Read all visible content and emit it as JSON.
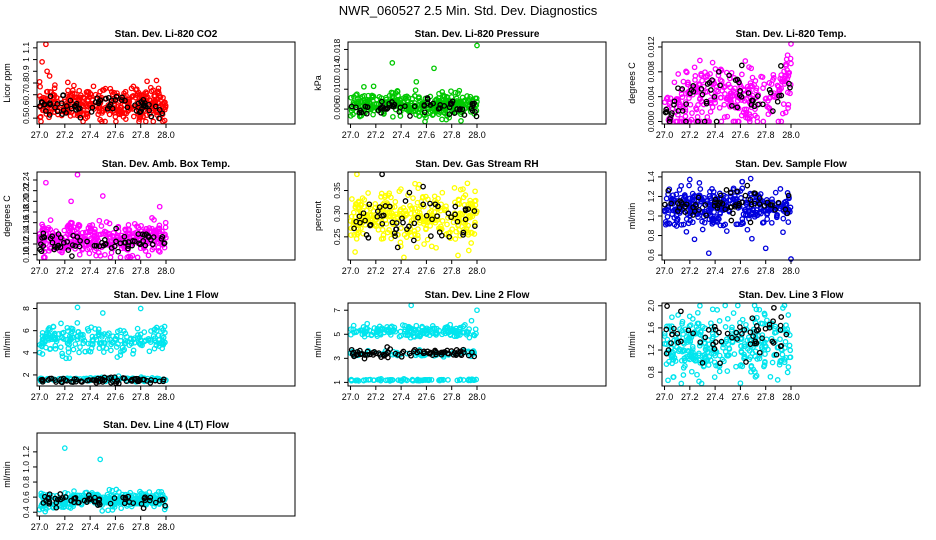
{
  "page": {
    "title": "NWR_060527  2.5 Min. Std. Dev. Diagnostics"
  },
  "chart_data": [
    {
      "type": "scatter",
      "title": "Stan. Dev. Li-820 CO2",
      "xlabel": "",
      "ylabel": "Licor ppm",
      "xlim": [
        26.98,
        29.02
      ],
      "ylim": [
        0.45,
        1.15
      ],
      "xticks": [
        27.0,
        27.2,
        27.4,
        27.6,
        27.8,
        28.0
      ],
      "xtick_labels": [
        "27.0",
        "27.2",
        "27.4",
        "27.6",
        "27.8",
        "28.0"
      ],
      "yticks": [
        0.5,
        0.6,
        0.7,
        0.8,
        0.9,
        1.0,
        1.1
      ],
      "ytick_labels": [
        "0.5",
        "0.6",
        "0.7",
        "0.8",
        "0.9",
        "1",
        "1.1"
      ],
      "series": [
        {
          "name": "color",
          "color": "#ff0000",
          "base": 0.62,
          "spread": 0.07,
          "n": 360,
          "outliers": [
            [
              27.05,
              1.13
            ],
            [
              27.02,
              0.98
            ],
            [
              27.06,
              0.9
            ],
            [
              27.08,
              0.86
            ],
            [
              27.5,
              0.74
            ],
            [
              27.88,
              0.76
            ],
            [
              27.99,
              0.48
            ]
          ]
        },
        {
          "name": "black",
          "color": "#000000",
          "base": 0.6,
          "spread": 0.04,
          "n": 70,
          "outliers": []
        }
      ]
    },
    {
      "type": "scatter",
      "title": "Stan. Dev. Li-820 Pressure",
      "xlabel": "",
      "ylabel": "kPa",
      "xlim": [
        26.98,
        29.02
      ],
      "ylim": [
        0.003,
        0.0195
      ],
      "xticks": [
        27.0,
        27.2,
        27.4,
        27.6,
        27.8,
        28.0
      ],
      "xtick_labels": [
        "27.0",
        "27.2",
        "27.4",
        "27.6",
        "27.8",
        "28.0"
      ],
      "yticks": [
        0.006,
        0.01,
        0.014,
        0.018
      ],
      "ytick_labels": [
        "0.006",
        "0.010",
        "0.014",
        "0.018"
      ],
      "series": [
        {
          "name": "color",
          "color": "#00c800",
          "base": 0.0068,
          "spread": 0.0012,
          "n": 340,
          "outliers": [
            [
              27.33,
              0.0153
            ],
            [
              27.52,
              0.0115
            ],
            [
              27.66,
              0.0142
            ],
            [
              28.0,
              0.0188
            ],
            [
              27.05,
              0.009
            ],
            [
              27.85,
              0.0092
            ]
          ]
        },
        {
          "name": "black",
          "color": "#000000",
          "base": 0.0062,
          "spread": 0.0008,
          "n": 60,
          "outliers": []
        }
      ]
    },
    {
      "type": "scatter",
      "title": "Stan. Dev. Li-820 Temp.",
      "xlabel": "",
      "ylabel": "degrees C",
      "xlim": [
        26.98,
        29.02
      ],
      "ylim": [
        -0.0004,
        0.0128
      ],
      "xticks": [
        27.0,
        27.2,
        27.4,
        27.6,
        27.8,
        28.0
      ],
      "xtick_labels": [
        "27.0",
        "27.2",
        "27.4",
        "27.6",
        "27.8",
        "28.0"
      ],
      "yticks": [
        0.0,
        0.004,
        0.008,
        0.012
      ],
      "ytick_labels": [
        "0.000",
        "0.004",
        "0.008",
        "0.012"
      ],
      "series": [
        {
          "name": "color",
          "color": "#ff00ff",
          "base": 0.005,
          "spread": 0.0022,
          "n": 300,
          "trend": "temp",
          "outliers": [
            [
              27.1,
              0.0
            ],
            [
              27.15,
              0.0
            ],
            [
              27.2,
              0.0
            ],
            [
              27.25,
              0.0
            ],
            [
              27.35,
              0.0
            ],
            [
              27.45,
              0.0
            ],
            [
              27.9,
              0.0
            ],
            [
              28.0,
              0.0125
            ]
          ]
        },
        {
          "name": "black",
          "color": "#000000",
          "base": 0.005,
          "spread": 0.0015,
          "n": 60,
          "trend": "temp",
          "outliers": []
        }
      ]
    },
    {
      "type": "scatter",
      "title": "Stan. Dev. Amb. Box Temp.",
      "xlabel": "",
      "ylabel": "degrees C",
      "xlim": [
        26.98,
        29.02
      ],
      "ylim": [
        0.09,
        0.255
      ],
      "xticks": [
        27.0,
        27.2,
        27.4,
        27.6,
        27.8,
        28.0
      ],
      "xtick_labels": [
        "27.0",
        "27.2",
        "27.4",
        "27.6",
        "27.8",
        "28.0"
      ],
      "yticks": [
        0.1,
        0.12,
        0.14,
        0.16,
        0.18,
        0.2,
        0.22,
        0.24
      ],
      "ytick_labels": [
        "0.10",
        "0.12",
        "0.14",
        "0.16",
        "0.18",
        "0.20",
        "0.22",
        "0.24"
      ],
      "series": [
        {
          "name": "color",
          "color": "#ff00ff",
          "base": 0.13,
          "spread": 0.015,
          "n": 340,
          "outliers": [
            [
              27.05,
              0.235
            ],
            [
              27.3,
              0.25
            ],
            [
              27.5,
              0.21
            ],
            [
              27.25,
              0.2
            ],
            [
              27.95,
              0.19
            ]
          ]
        },
        {
          "name": "black",
          "color": "#000000",
          "base": 0.122,
          "spread": 0.01,
          "n": 70,
          "outliers": []
        }
      ]
    },
    {
      "type": "scatter",
      "title": "Stan. Dev. Gas Stream RH",
      "xlabel": "",
      "ylabel": "percent",
      "xlim": [
        26.98,
        29.02
      ],
      "ylim": [
        0.2,
        0.39
      ],
      "xticks": [
        27.0,
        27.2,
        27.4,
        27.6,
        27.8,
        28.0
      ],
      "xtick_labels": [
        "27.0",
        "27.2",
        "27.4",
        "27.6",
        "27.8",
        "28.0"
      ],
      "yticks": [
        0.25,
        0.3,
        0.35
      ],
      "ytick_labels": [
        "0.25",
        "0.30",
        "0.35"
      ],
      "series": [
        {
          "name": "color",
          "color": "#ffff00",
          "base": 0.29,
          "spread": 0.03,
          "n": 340,
          "outliers": [
            [
              27.05,
              0.385
            ],
            [
              27.85,
              0.21
            ]
          ]
        },
        {
          "name": "black",
          "color": "#000000",
          "base": 0.28,
          "spread": 0.025,
          "n": 60,
          "outliers": [
            [
              27.25,
              0.385
            ]
          ]
        }
      ]
    },
    {
      "type": "scatter",
      "title": "Stan. Dev. Sample Flow",
      "xlabel": "",
      "ylabel": "ml/min",
      "xlim": [
        26.98,
        29.02
      ],
      "ylim": [
        0.55,
        1.45
      ],
      "xticks": [
        27.0,
        27.2,
        27.4,
        27.6,
        27.8,
        28.0
      ],
      "xtick_labels": [
        "27.0",
        "27.2",
        "27.4",
        "27.6",
        "27.8",
        "28.0"
      ],
      "yticks": [
        0.6,
        0.8,
        1.0,
        1.2,
        1.4
      ],
      "ytick_labels": [
        "0.6",
        "0.8",
        "1.0",
        "1.2",
        "1.4"
      ],
      "series": [
        {
          "name": "color",
          "color": "#0000dd",
          "base": 1.1,
          "spread": 0.1,
          "n": 360,
          "outliers": [
            [
              27.35,
              0.62
            ],
            [
              27.8,
              0.67
            ],
            [
              28.0,
              0.56
            ]
          ]
        },
        {
          "name": "black",
          "color": "#000000",
          "base": 1.12,
          "spread": 0.08,
          "n": 60,
          "outliers": []
        }
      ]
    },
    {
      "type": "scatter",
      "title": "Stan. Dev. Line 1 Flow",
      "xlabel": "",
      "ylabel": "ml/min",
      "xlim": [
        26.98,
        29.02
      ],
      "ylim": [
        1.0,
        8.5
      ],
      "xticks": [
        27.0,
        27.2,
        27.4,
        27.6,
        27.8,
        28.0
      ],
      "xtick_labels": [
        "27.0",
        "27.2",
        "27.4",
        "27.6",
        "27.8",
        "28.0"
      ],
      "yticks": [
        2,
        4,
        6,
        8
      ],
      "ytick_labels": [
        "2",
        "4",
        "6",
        "8"
      ],
      "series": [
        {
          "name": "color",
          "color": "#00e5ee",
          "base": 5.2,
          "spread": 0.6,
          "n": 320,
          "band2": 1.6,
          "outliers": [
            [
              27.3,
              8.1
            ],
            [
              27.8,
              8.0
            ],
            [
              27.5,
              7.6
            ]
          ]
        },
        {
          "name": "black",
          "color": "#000000",
          "base": 1.5,
          "spread": 0.12,
          "n": 70,
          "outliers": []
        }
      ]
    },
    {
      "type": "scatter",
      "title": "Stan. Dev. Line 2 Flow",
      "xlabel": "",
      "ylabel": "ml/min",
      "xlim": [
        26.98,
        29.02
      ],
      "ylim": [
        0.7,
        7.6
      ],
      "xticks": [
        27.0,
        27.2,
        27.4,
        27.6,
        27.8,
        28.0
      ],
      "xtick_labels": [
        "27.0",
        "27.2",
        "27.4",
        "27.6",
        "27.8",
        "28.0"
      ],
      "yticks": [
        1,
        3,
        5,
        7
      ],
      "ytick_labels": [
        "1",
        "3",
        "5",
        "7"
      ],
      "series": [
        {
          "name": "color",
          "color": "#00e5ee",
          "base": 5.3,
          "spread": 0.25,
          "n": 320,
          "band2": 1.2,
          "band3": 3.4,
          "outliers": [
            [
              27.48,
              7.4
            ],
            [
              28.0,
              7.0
            ]
          ]
        },
        {
          "name": "black",
          "color": "#000000",
          "base": 3.4,
          "spread": 0.2,
          "n": 80,
          "outliers": []
        }
      ]
    },
    {
      "type": "scatter",
      "title": "Stan. Dev. Line 3 Flow",
      "xlabel": "",
      "ylabel": "ml/min",
      "xlim": [
        26.98,
        29.02
      ],
      "ylim": [
        0.55,
        2.05
      ],
      "xticks": [
        27.0,
        27.2,
        27.4,
        27.6,
        27.8,
        28.0
      ],
      "xtick_labels": [
        "27.0",
        "27.2",
        "27.4",
        "27.6",
        "27.8",
        "28.0"
      ],
      "yticks": [
        0.8,
        1.2,
        1.6,
        2.0
      ],
      "ytick_labels": [
        "0.8",
        "1.2",
        "1.6",
        "2.0"
      ],
      "series": [
        {
          "name": "color",
          "color": "#00e5ee",
          "base": 1.3,
          "spread": 0.28,
          "n": 340,
          "outliers": [
            [
              27.28,
              2.0
            ],
            [
              27.6,
              0.6
            ]
          ]
        },
        {
          "name": "black",
          "color": "#000000",
          "base": 1.45,
          "spread": 0.2,
          "n": 60,
          "outliers": []
        }
      ]
    },
    {
      "type": "scatter",
      "title": "Stan. Dev. Line 4 (LT) Flow",
      "xlabel": "",
      "ylabel": "ml/min",
      "xlim": [
        26.98,
        29.02
      ],
      "ylim": [
        0.35,
        1.45
      ],
      "xticks": [
        27.0,
        27.2,
        27.4,
        27.6,
        27.8,
        28.0
      ],
      "xtick_labels": [
        "27.0",
        "27.2",
        "27.4",
        "27.6",
        "27.8",
        "28.0"
      ],
      "yticks": [
        0.4,
        0.6,
        0.8,
        1.0,
        1.2
      ],
      "ytick_labels": [
        "0.4",
        "0.6",
        "0.8",
        "1.0",
        "1.2"
      ],
      "series": [
        {
          "name": "color",
          "color": "#00e5ee",
          "base": 0.56,
          "spread": 0.05,
          "n": 320,
          "outliers": [
            [
              27.2,
              1.25
            ],
            [
              27.48,
              1.1
            ]
          ]
        },
        {
          "name": "black",
          "color": "#000000",
          "base": 0.55,
          "spread": 0.04,
          "n": 60,
          "outliers": []
        }
      ]
    }
  ]
}
